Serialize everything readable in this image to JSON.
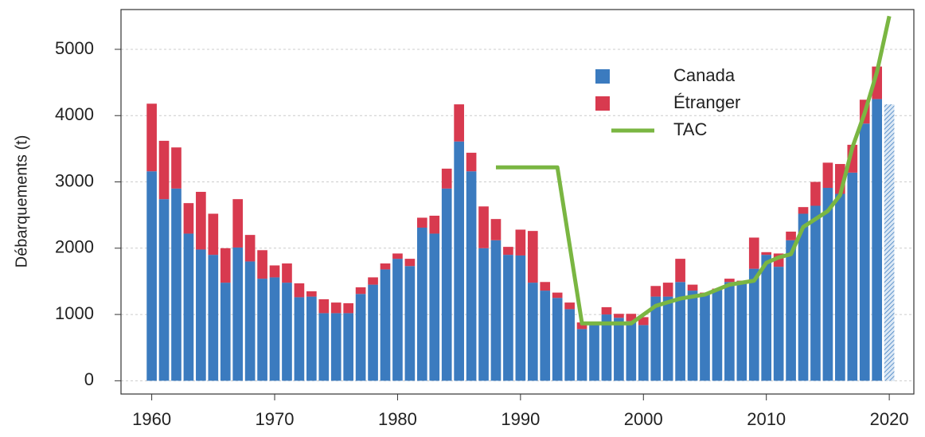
{
  "chart_data": {
    "type": "bar",
    "stacked": true,
    "ylabel": "Débarquements (t)",
    "x": [
      1960,
      1961,
      1962,
      1963,
      1964,
      1965,
      1966,
      1967,
      1968,
      1969,
      1970,
      1971,
      1972,
      1973,
      1974,
      1975,
      1976,
      1977,
      1978,
      1979,
      1980,
      1981,
      1982,
      1983,
      1984,
      1985,
      1986,
      1987,
      1988,
      1989,
      1990,
      1991,
      1992,
      1993,
      1994,
      1995,
      1996,
      1997,
      1998,
      1999,
      2000,
      2001,
      2002,
      2003,
      2004,
      2005,
      2006,
      2007,
      2008,
      2009,
      2010,
      2011,
      2012,
      2013,
      2014,
      2015,
      2016,
      2017,
      2018,
      2019,
      2020
    ],
    "series": [
      {
        "name": "Canada",
        "color": "#3b7bbf",
        "values": [
          3160,
          2740,
          2900,
          2220,
          1980,
          1900,
          1480,
          2010,
          1800,
          1540,
          1560,
          1480,
          1260,
          1270,
          1020,
          1020,
          1020,
          1310,
          1450,
          1680,
          1840,
          1730,
          2310,
          2220,
          2900,
          3610,
          3160,
          2000,
          2120,
          1900,
          1890,
          1480,
          1360,
          1250,
          1080,
          780,
          880,
          1000,
          950,
          900,
          840,
          1270,
          1270,
          1490,
          1360,
          1300,
          1370,
          1490,
          1480,
          1690,
          1900,
          1720,
          2120,
          2520,
          2640,
          2910,
          2820,
          3140,
          3880,
          4250,
          4170
        ]
      },
      {
        "name": "Étranger",
        "color": "#d83a4f",
        "values": [
          1020,
          880,
          620,
          460,
          870,
          620,
          520,
          730,
          400,
          430,
          180,
          290,
          210,
          80,
          210,
          160,
          150,
          100,
          110,
          90,
          80,
          110,
          150,
          270,
          300,
          560,
          280,
          630,
          320,
          120,
          390,
          780,
          130,
          80,
          100,
          100,
          0,
          110,
          60,
          110,
          120,
          160,
          210,
          350,
          90,
          30,
          20,
          50,
          30,
          470,
          40,
          200,
          130,
          100,
          360,
          380,
          450,
          420,
          360,
          490,
          null
        ]
      },
      {
        "name": "TAC",
        "type": "line",
        "color": "#7ab642",
        "x": [
          1988,
          1993,
          1995,
          1999,
          2001,
          2003,
          2005,
          2007,
          2009,
          2010,
          2011,
          2012,
          2013,
          2015,
          2016,
          2017,
          2018,
          2019,
          2020
        ],
        "values": [
          3220,
          3220,
          865,
          865,
          1130,
          1240,
          1300,
          1450,
          1510,
          1780,
          1860,
          1910,
          2320,
          2560,
          2800,
          3520,
          4040,
          4660,
          5500
        ]
      }
    ],
    "hatched_last": true,
    "xlim": [
      1957.5,
      2022
    ],
    "ylim": [
      -200,
      5600
    ],
    "xticks": [
      1960,
      1970,
      1980,
      1990,
      2000,
      2010,
      2020
    ],
    "yticks": [
      0,
      1000,
      2000,
      3000,
      4000,
      5000
    ],
    "grid": true
  }
}
